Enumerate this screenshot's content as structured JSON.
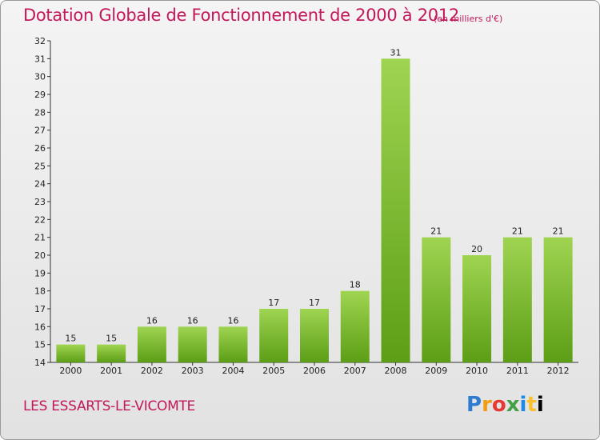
{
  "header": {
    "title": "Dotation Globale de Fonctionnement de 2000 à 2012",
    "subtitle": "(en milliers d'€)"
  },
  "footer": {
    "commune": "LES ESSARTS-LE-VICOMTE",
    "logo": "Proxiti"
  },
  "colors": {
    "title": "#c2185b",
    "bar_top": "#9fd451",
    "bar_bottom": "#5c9e16"
  },
  "chart_data": {
    "type": "bar",
    "title": "Dotation Globale de Fonctionnement de 2000 à 2012",
    "subtitle": "(en milliers d'€)",
    "categories": [
      "2000",
      "2001",
      "2002",
      "2003",
      "2004",
      "2005",
      "2006",
      "2007",
      "2008",
      "2009",
      "2010",
      "2011",
      "2012"
    ],
    "values": [
      15,
      15,
      16,
      16,
      16,
      17,
      17,
      18,
      31,
      21,
      20,
      21,
      21
    ],
    "ylim": [
      14,
      32
    ],
    "yticks": [
      14,
      15,
      16,
      17,
      18,
      19,
      20,
      21,
      22,
      23,
      24,
      25,
      26,
      27,
      28,
      29,
      30,
      31,
      32
    ],
    "grid": false,
    "legend": "none",
    "xlabel": "",
    "ylabel": ""
  }
}
